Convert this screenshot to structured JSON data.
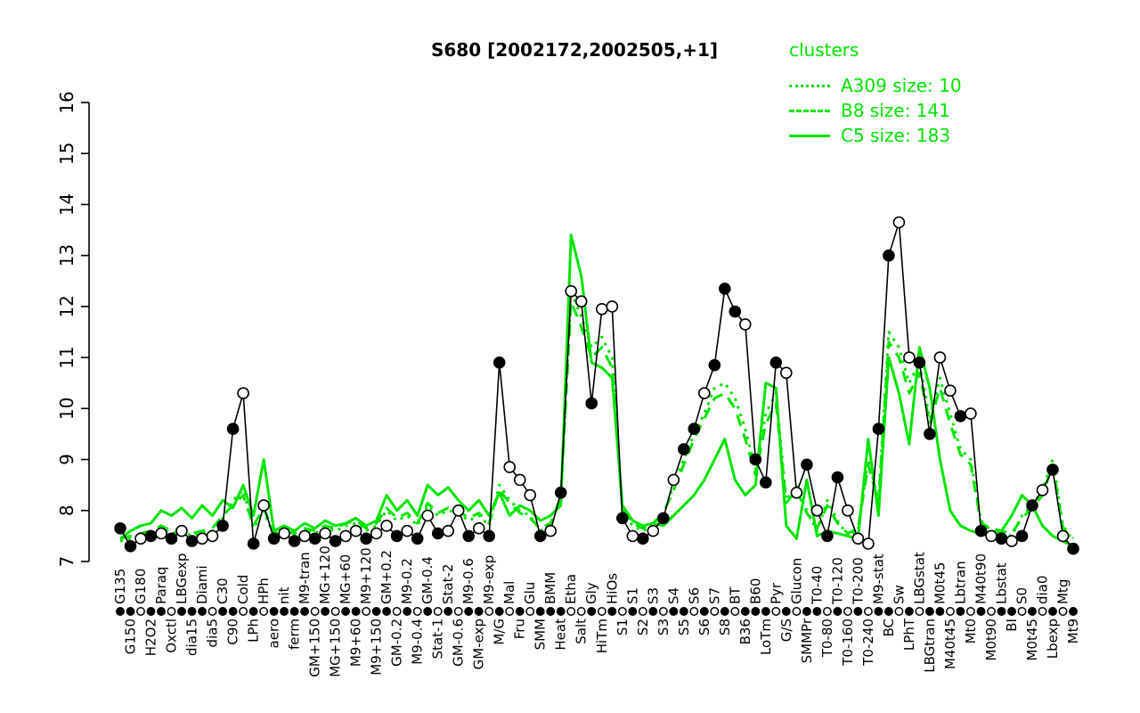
{
  "title_color": "#000000",
  "accent_green": "#00e400",
  "chart_data": {
    "type": "line",
    "title": "S680 [2002172,2002505,+1]",
    "ylim": [
      7,
      16
    ],
    "yticks": [
      7,
      8,
      9,
      10,
      11,
      12,
      13,
      14,
      15,
      16
    ],
    "grid": false,
    "legend": {
      "title": "clusters",
      "position": "top-right",
      "entries": [
        {
          "label": "A309 size: 10",
          "style": "dotted"
        },
        {
          "label": "B8 size: 141",
          "style": "dashed"
        },
        {
          "label": "C5 size: 183",
          "style": "solid"
        }
      ]
    },
    "categories": [
      "G135",
      "G150",
      "G180",
      "H2O2",
      "Paraq",
      "Oxctl",
      "LBGexp",
      "dia15",
      "Diami",
      "dia5",
      "C30",
      "C90",
      "Cold",
      "LPh",
      "HPh",
      "aero",
      "nit",
      "ferm",
      "M9-tran",
      "GM+150",
      "MG+120",
      "MG+150",
      "MG+60",
      "M9+60",
      "M9+120",
      "M9+150",
      "GM+0.2",
      "GM-0.2",
      "M9-0.2",
      "M9-0.4",
      "GM-0.4",
      "Stat-1",
      "Stat-2",
      "GM-0.6",
      "M9-0.6",
      "GM-exp",
      "M9-exp",
      "M/G",
      "Mal",
      "Fru",
      "Glu",
      "SMM",
      "BMM",
      "Heat",
      "Etha",
      "Salt",
      "Gly",
      "HiTm",
      "HiOs",
      "S1",
      "S1",
      "S2",
      "S3",
      "S3",
      "S4",
      "S5",
      "S6",
      "S6",
      "S7",
      "S8",
      "BT",
      "B36",
      "B60",
      "LoTm",
      "Pyr",
      "G/S",
      "Glucon",
      "SMMPr",
      "T0-40",
      "T0-80",
      "T0-120",
      "T0-160",
      "T0-200",
      "T0-240",
      "M9-stat",
      "BC",
      "Sw",
      "LPhT",
      "LBGstat",
      "LBGtran",
      "M0t45",
      "M40t45",
      "Lbtran",
      "Mt0",
      "M40t90",
      "M0t90",
      "Lbstat",
      "BI",
      "S0",
      "M0t45",
      "dia0",
      "Lbexp",
      "Mtg",
      "Mt9"
    ],
    "series": [
      {
        "name": "S680",
        "color": "#000000",
        "style": "solid",
        "markers": true,
        "values": [
          7.65,
          7.3,
          7.45,
          7.5,
          7.55,
          7.45,
          7.6,
          7.4,
          7.45,
          7.5,
          7.7,
          9.6,
          10.3,
          7.35,
          8.1,
          7.45,
          7.55,
          7.4,
          7.5,
          7.45,
          7.55,
          7.4,
          7.5,
          7.6,
          7.45,
          7.55,
          7.7,
          7.5,
          7.6,
          7.45,
          7.9,
          7.55,
          7.6,
          8.0,
          7.5,
          7.65,
          7.5,
          10.9,
          8.85,
          8.6,
          8.3,
          7.5,
          7.6,
          8.35,
          12.3,
          12.1,
          10.1,
          11.95,
          12.0,
          7.85,
          7.5,
          7.45,
          7.6,
          7.85,
          8.6,
          9.2,
          9.6,
          10.3,
          10.85,
          12.35,
          11.9,
          11.65,
          9.0,
          8.55,
          10.9,
          10.7,
          8.35,
          8.9,
          8.0,
          7.5,
          8.65,
          8.0,
          7.45,
          7.35,
          9.6,
          13.0,
          13.65,
          11.0,
          10.9,
          9.5,
          11.0,
          10.35,
          9.85,
          9.9,
          7.6,
          7.5,
          7.45,
          7.4,
          7.5,
          8.1,
          8.4,
          8.8,
          7.5,
          7.25
        ]
      },
      {
        "name": "A309",
        "color": "#00e400",
        "style": "dotted",
        "markers": false,
        "values": [
          7.4,
          7.45,
          7.5,
          7.55,
          7.65,
          7.55,
          7.6,
          7.5,
          7.55,
          7.6,
          7.85,
          8.2,
          8.4,
          7.65,
          8.0,
          7.5,
          7.55,
          7.5,
          7.6,
          7.55,
          7.65,
          7.6,
          7.7,
          7.75,
          7.6,
          7.7,
          8.0,
          7.8,
          7.9,
          7.7,
          8.1,
          7.9,
          8.0,
          7.95,
          7.8,
          7.9,
          7.7,
          8.5,
          8.2,
          8.0,
          7.9,
          7.6,
          7.7,
          8.3,
          12.3,
          11.8,
          11.2,
          11.4,
          11.0,
          8.0,
          7.7,
          7.6,
          7.7,
          7.9,
          8.5,
          9.0,
          9.5,
          9.9,
          10.4,
          10.5,
          10.2,
          9.6,
          8.8,
          9.9,
          10.3,
          8.2,
          8.5,
          8.0,
          7.6,
          8.2,
          7.8,
          7.5,
          7.6,
          9.0,
          8.2,
          11.5,
          11.2,
          10.5,
          10.9,
          9.8,
          10.6,
          9.9,
          9.2,
          9.0,
          7.8,
          7.6,
          7.55,
          7.5,
          7.9,
          8.1,
          8.4,
          9.0,
          7.7,
          7.4
        ]
      },
      {
        "name": "B8",
        "color": "#00e400",
        "style": "dashed",
        "markers": false,
        "values": [
          7.45,
          7.5,
          7.55,
          7.6,
          7.7,
          7.6,
          7.65,
          7.55,
          7.6,
          7.65,
          7.9,
          8.1,
          8.3,
          7.7,
          8.05,
          7.55,
          7.6,
          7.55,
          7.65,
          7.6,
          7.7,
          7.65,
          7.75,
          7.8,
          7.65,
          7.75,
          8.05,
          7.85,
          7.95,
          7.75,
          8.15,
          7.95,
          8.05,
          8.0,
          7.85,
          7.95,
          7.75,
          8.4,
          8.15,
          7.95,
          7.85,
          7.65,
          7.75,
          8.25,
          12.1,
          11.6,
          11.0,
          11.2,
          10.8,
          8.05,
          7.75,
          7.65,
          7.75,
          7.95,
          8.4,
          8.9,
          9.4,
          9.8,
          10.2,
          10.3,
          10.0,
          9.4,
          8.7,
          9.7,
          10.1,
          8.15,
          8.4,
          7.95,
          7.65,
          8.1,
          7.75,
          7.55,
          7.65,
          8.9,
          8.15,
          11.3,
          11.0,
          10.3,
          10.7,
          9.7,
          10.4,
          9.7,
          9.1,
          8.9,
          7.75,
          7.65,
          7.6,
          7.55,
          7.85,
          8.05,
          8.3,
          8.9,
          7.65,
          7.45
        ]
      },
      {
        "name": "C5",
        "color": "#00e400",
        "style": "solid",
        "markers": false,
        "values": [
          7.45,
          7.6,
          7.7,
          7.75,
          8.0,
          7.9,
          8.05,
          7.85,
          8.1,
          7.9,
          8.2,
          8.05,
          8.5,
          7.9,
          9.0,
          7.6,
          7.7,
          7.6,
          7.75,
          7.65,
          7.8,
          7.7,
          7.75,
          7.85,
          7.7,
          7.8,
          8.3,
          8.0,
          8.2,
          7.9,
          8.5,
          8.3,
          8.45,
          8.2,
          8.0,
          8.2,
          7.9,
          8.35,
          7.9,
          8.1,
          8.0,
          7.8,
          7.9,
          8.1,
          13.4,
          12.6,
          10.9,
          10.8,
          10.6,
          8.1,
          7.8,
          7.7,
          7.75,
          7.7,
          7.9,
          8.1,
          8.3,
          8.6,
          9.0,
          9.4,
          8.6,
          8.3,
          8.5,
          10.5,
          10.4,
          7.7,
          7.45,
          8.6,
          7.5,
          7.6,
          7.55,
          7.5,
          7.45,
          9.4,
          7.9,
          11.0,
          10.3,
          9.3,
          11.2,
          10.4,
          9.0,
          8.0,
          7.7,
          7.6,
          7.55,
          7.5,
          7.6,
          7.9,
          8.3,
          8.1,
          7.7,
          7.5,
          7.4,
          7.3
        ]
      }
    ],
    "marker_filled": [
      true,
      true,
      false,
      true,
      false,
      true,
      false,
      true,
      false,
      false,
      true,
      true,
      false,
      true,
      false,
      true,
      false,
      true,
      false,
      true,
      false,
      true,
      false,
      false,
      true,
      false,
      false,
      true,
      false,
      true,
      false,
      true,
      false,
      false,
      true,
      false,
      true,
      true,
      false,
      false,
      false,
      true,
      false,
      true,
      false,
      false,
      true,
      false,
      false,
      true,
      false,
      true,
      false,
      true,
      false,
      true,
      true,
      false,
      true,
      true,
      true,
      false,
      true,
      true,
      true,
      false,
      false,
      true,
      false,
      true,
      true,
      false,
      false,
      false,
      true,
      true,
      false,
      false,
      true,
      true,
      false,
      false,
      true,
      false,
      true,
      false,
      true,
      false,
      true,
      true,
      false,
      true,
      false,
      true
    ],
    "rug_filled": [
      true,
      true,
      false,
      true,
      true,
      false,
      true,
      true,
      true,
      false,
      true,
      true,
      false,
      true,
      false,
      true,
      true,
      true,
      true,
      false,
      true,
      false,
      true,
      true,
      false,
      true,
      true,
      false,
      true,
      false,
      true,
      false,
      true,
      false,
      true,
      true,
      false,
      true,
      false,
      true,
      false,
      true,
      true,
      true,
      false,
      false,
      true,
      false,
      true,
      false,
      true,
      false,
      true,
      false,
      true,
      true,
      false,
      true,
      false,
      true,
      false,
      true,
      true,
      true,
      false,
      true,
      false,
      true,
      true,
      false,
      true,
      false,
      true,
      false,
      true,
      true,
      false,
      true,
      false,
      true,
      true,
      false,
      true,
      false,
      true,
      false,
      true,
      true,
      false,
      true,
      false,
      true,
      false,
      true
    ]
  }
}
